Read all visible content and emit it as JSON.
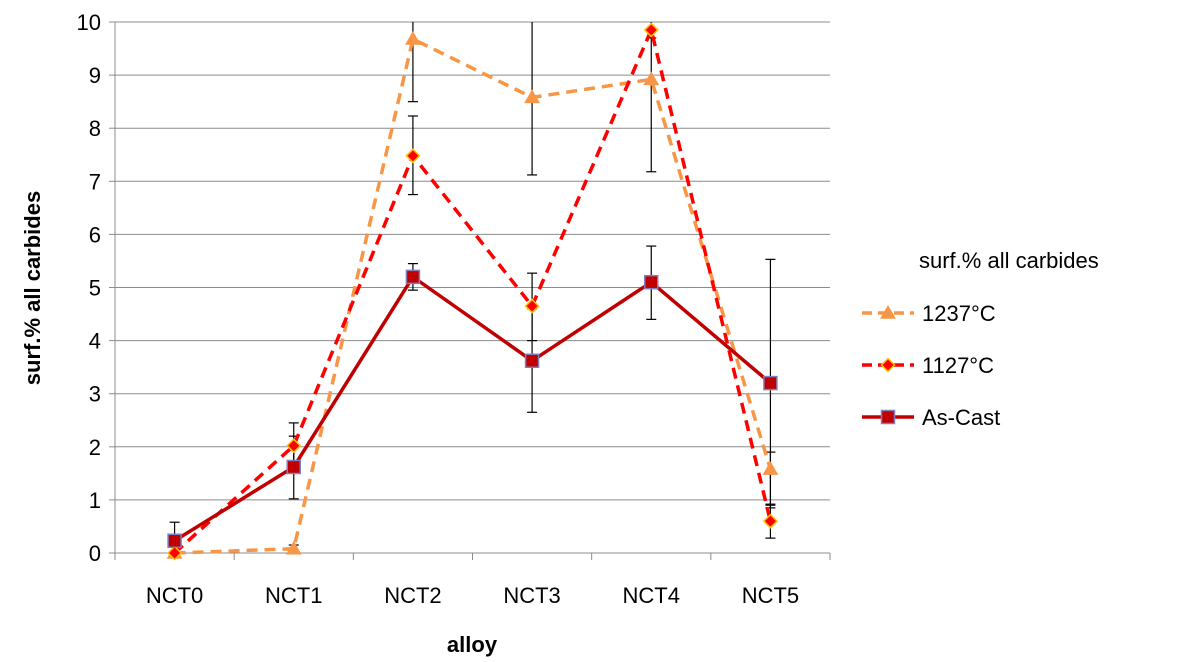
{
  "chart_data": {
    "type": "line",
    "xlabel": "alloy",
    "ylabel": "surf.% all carbides",
    "ylim": [
      0,
      10
    ],
    "yticks": [
      0,
      1,
      2,
      3,
      4,
      5,
      6,
      7,
      8,
      9,
      10
    ],
    "grid": "horizontal",
    "legend_position": "right",
    "legend_title": "surf.% all carbides",
    "categories": [
      "NCT0",
      "NCT1",
      "NCT2",
      "NCT3",
      "NCT4",
      "NCT5"
    ],
    "series": [
      {
        "name": "1237°C",
        "values": [
          0.0,
          0.08,
          9.68,
          8.58,
          8.92,
          1.58
        ],
        "err_low": [
          0.0,
          0.0,
          8.5,
          7.12,
          7.18,
          0.9
        ],
        "err_high": [
          0.0,
          0.15,
          10.0,
          10.0,
          10.0,
          1.9
        ],
        "color": "#f79646",
        "dash": "dashed",
        "marker": "triangle"
      },
      {
        "name": "1127°C",
        "values": [
          0.0,
          2.02,
          7.48,
          4.65,
          9.85,
          0.6
        ],
        "err_low": [
          0.0,
          1.6,
          6.75,
          4.0,
          9.7,
          0.28
        ],
        "err_high": [
          0.0,
          2.45,
          8.23,
          5.27,
          10.0,
          0.92
        ],
        "color": "#ff0000",
        "dash": "dashed",
        "marker": "diamond"
      },
      {
        "name": "As-Cast",
        "values": [
          0.23,
          1.62,
          5.2,
          3.62,
          5.1,
          3.2
        ],
        "err_low": [
          0.0,
          1.02,
          4.95,
          2.65,
          4.4,
          0.85
        ],
        "err_high": [
          0.58,
          2.2,
          5.45,
          4.6,
          5.78,
          5.53
        ],
        "color": "#c00000",
        "dash": "solid",
        "marker": "square"
      }
    ]
  }
}
